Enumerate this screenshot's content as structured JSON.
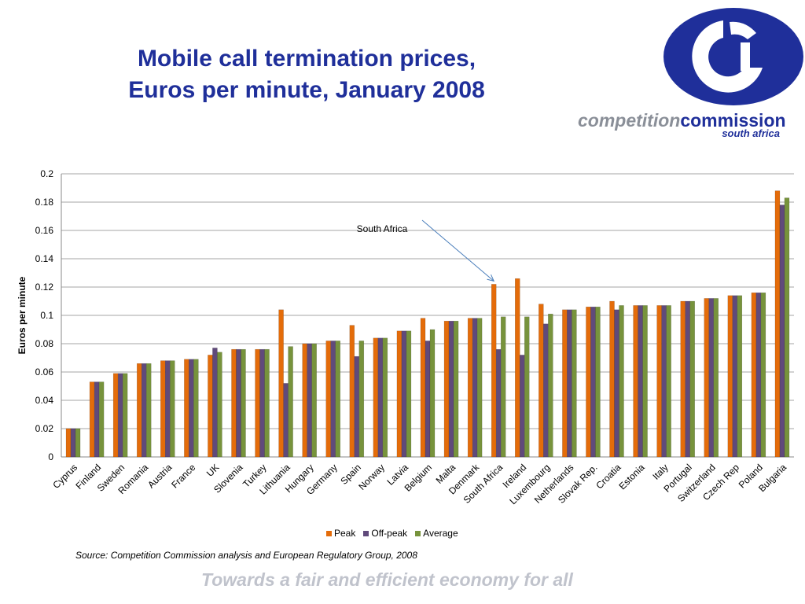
{
  "title": {
    "line1": "Mobile call termination prices,",
    "line2": "Euros per minute, January 2008"
  },
  "brand": {
    "icon": "competition-commission-logo",
    "name_light": "competition",
    "name_dark": "commission",
    "subtitle": "south africa",
    "primary_color": "#1f2f9a"
  },
  "source_note": "Source: Competition Commission analysis and European Regulatory Group, 2008",
  "tagline": "Towards a fair and efficient economy for all",
  "chart_data": {
    "type": "bar",
    "title": "",
    "xlabel": "",
    "ylabel": "Euros per minute",
    "ylim": [
      0,
      0.2
    ],
    "yticks": [
      "0",
      "0.02",
      "0.04",
      "0.06",
      "0.08",
      "0.1",
      "0.12",
      "0.14",
      "0.16",
      "0.18",
      "0.2"
    ],
    "grid": true,
    "legend_position": "bottom",
    "categories": [
      "Cyprus",
      "Finland",
      "Sweden",
      "Romania",
      "Austria",
      "France",
      "UK",
      "Slovenia",
      "Turkey",
      "Lithuania",
      "Hungary",
      "Germany",
      "Spain",
      "Norway",
      "Latvia",
      "Belgium",
      "Malta",
      "Denmark",
      "South Africa",
      "Ireland",
      "Luxembourg",
      "Netherlands",
      "Slovak Rep.",
      "Croatia",
      "Estonia",
      "Italy",
      "Portugal",
      "Switzerland",
      "Czech Rep",
      "Poland",
      "Bulgaria"
    ],
    "series": [
      {
        "name": "Peak",
        "color": "#e46c0a",
        "values": [
          0.02,
          0.053,
          0.059,
          0.066,
          0.068,
          0.069,
          0.072,
          0.076,
          0.076,
          0.104,
          0.08,
          0.082,
          0.093,
          0.084,
          0.089,
          0.098,
          0.096,
          0.098,
          0.122,
          0.126,
          0.108,
          0.104,
          0.106,
          0.11,
          0.107,
          0.107,
          0.11,
          0.112,
          0.114,
          0.116,
          0.188
        ]
      },
      {
        "name": "Off-peak",
        "color": "#604a7b",
        "values": [
          0.02,
          0.053,
          0.059,
          0.066,
          0.068,
          0.069,
          0.077,
          0.076,
          0.076,
          0.052,
          0.08,
          0.082,
          0.071,
          0.084,
          0.089,
          0.082,
          0.096,
          0.098,
          0.076,
          0.072,
          0.094,
          0.104,
          0.106,
          0.104,
          0.107,
          0.107,
          0.11,
          0.112,
          0.114,
          0.116,
          0.178
        ]
      },
      {
        "name": "Average",
        "color": "#77933c",
        "values": [
          0.02,
          0.053,
          0.059,
          0.066,
          0.068,
          0.069,
          0.074,
          0.076,
          0.076,
          0.078,
          0.08,
          0.082,
          0.082,
          0.084,
          0.089,
          0.09,
          0.096,
          0.098,
          0.099,
          0.099,
          0.101,
          0.104,
          0.106,
          0.107,
          0.107,
          0.107,
          0.11,
          0.112,
          0.114,
          0.116,
          0.183
        ]
      }
    ],
    "annotations": [
      {
        "text": "South Africa",
        "target_category": "South Africa",
        "target_series": "Peak"
      }
    ]
  }
}
